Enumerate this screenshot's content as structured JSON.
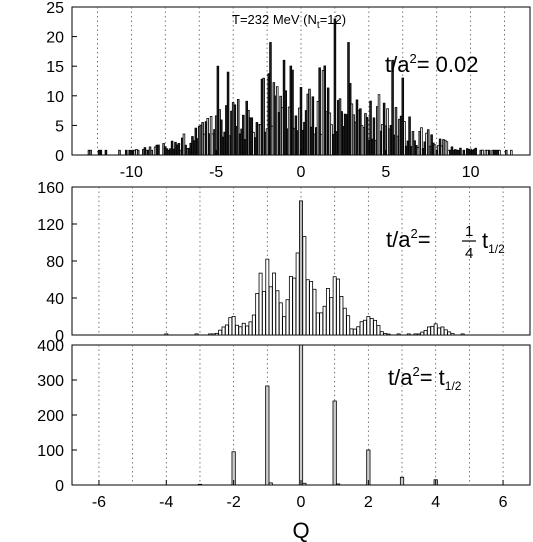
{
  "chart_data": [
    {
      "type": "bar",
      "panel": "top",
      "annotation_header": "T=232 MeV (N",
      "annotation_header_sub": "t",
      "annotation_header_tail": "=12)",
      "annotation_lhs": "t/a",
      "annotation_sup": "2",
      "annotation_rhs": "= 0.02",
      "xlabel": "",
      "ylabel": "",
      "xlim": [
        -13.5,
        13.5
      ],
      "ylim": [
        0,
        25
      ],
      "x_ticks": [
        -10,
        -5,
        0,
        5,
        10
      ],
      "y_ticks": [
        0,
        5,
        10,
        15,
        20,
        25
      ],
      "x_gridlines": [
        -12,
        -10,
        -8,
        -6,
        -4,
        -2,
        0,
        2,
        4,
        6,
        8,
        10,
        12
      ],
      "grid": "vertical dotted",
      "envelope": {
        "center": 0.5,
        "peak": 10,
        "sigma": 4.3
      },
      "notable_bars": [
        {
          "x": -1.8,
          "y": 19
        },
        {
          "x": -1.0,
          "y": 16
        },
        {
          "x": 2.0,
          "y": 23
        },
        {
          "x": 2.8,
          "y": 19
        },
        {
          "x": 5.4,
          "y": 16
        },
        {
          "x": 6.0,
          "y": 13
        },
        {
          "x": -4.9,
          "y": 15
        },
        {
          "x": -4.3,
          "y": 14
        }
      ]
    },
    {
      "type": "bar",
      "panel": "middle",
      "annotation_lhs": "t/a",
      "annotation_sup": "2",
      "annotation_eq": "=",
      "annotation_num": "1",
      "annotation_den": "4",
      "annotation_t": "t",
      "annotation_sub": "1/2",
      "xlabel": "",
      "ylabel": "",
      "xlim": [
        -6.8,
        6.8
      ],
      "ylim": [
        0,
        160
      ],
      "y_ticks": [
        0,
        40,
        80,
        120,
        160
      ],
      "x_gridlines": [
        -6,
        -5,
        -4,
        -3,
        -2,
        -1,
        0,
        1,
        2,
        3,
        4,
        5,
        6
      ],
      "grid": "vertical dotted",
      "bin_width": 0.1,
      "peaks": [
        {
          "x": -2.0,
          "y": 20
        },
        {
          "x": -1.0,
          "y": 82
        },
        {
          "x": 0.0,
          "y": 145
        },
        {
          "x": 1.0,
          "y": 63
        },
        {
          "x": 2.0,
          "y": 20
        },
        {
          "x": 4.0,
          "y": 12
        }
      ],
      "peak_sigma": 0.25
    },
    {
      "type": "bar",
      "panel": "bottom",
      "annotation_lhs": "t/a",
      "annotation_sup": "2",
      "annotation_rhs": "= t",
      "annotation_sub": "1/2",
      "xlabel": "Q",
      "ylabel": "",
      "xlim": [
        -6.8,
        6.8
      ],
      "ylim": [
        0,
        400
      ],
      "x_ticks": [
        -6,
        -4,
        -2,
        0,
        2,
        4,
        6
      ],
      "y_ticks": [
        0,
        100,
        200,
        300,
        400
      ],
      "x_gridlines": [
        -6,
        -5,
        -4,
        -3,
        -2,
        -1,
        0,
        1,
        2,
        3,
        4,
        5,
        6
      ],
      "grid": "vertical dotted",
      "bars": [
        {
          "x": -3.0,
          "y": 2
        },
        {
          "x": -2.0,
          "y": 95
        },
        {
          "x": -1.0,
          "y": 283
        },
        {
          "x": -0.9,
          "y": 6
        },
        {
          "x": 0.0,
          "y": 420
        },
        {
          "x": 0.1,
          "y": 5
        },
        {
          "x": 1.0,
          "y": 240
        },
        {
          "x": 1.1,
          "y": 3
        },
        {
          "x": 2.0,
          "y": 100
        },
        {
          "x": 3.0,
          "y": 22
        },
        {
          "x": 4.0,
          "y": 15
        }
      ]
    }
  ]
}
